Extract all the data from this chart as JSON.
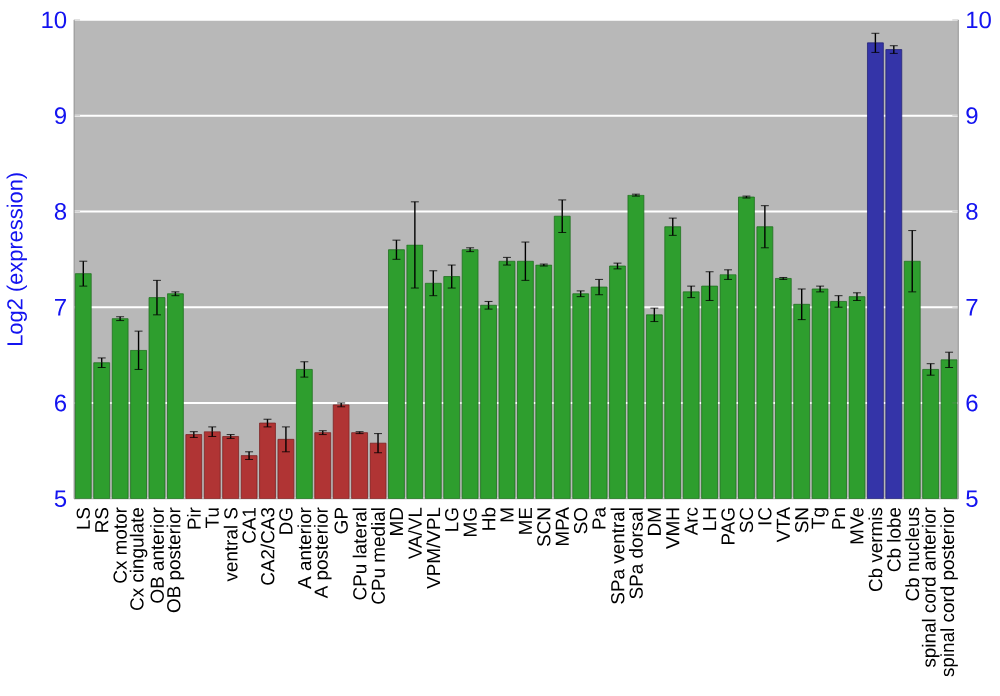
{
  "chart_data": {
    "type": "bar",
    "ylabel": "Log2 (expression)",
    "categories": [
      "LS",
      "RS",
      "Cx motor",
      "Cx cingulate",
      "OB anterior",
      "OB posterior",
      "Pir",
      "Tu",
      "ventral S",
      "CA1",
      "CA2/CA3",
      "DG",
      "A anterior",
      "A posterior",
      "GP",
      "CPu lateral",
      "CPu medial",
      "MD",
      "VA/VL",
      "VPM/VPL",
      "LG",
      "MG",
      "Hb",
      "M",
      "ME",
      "SCN",
      "MPA",
      "SO",
      "Pa",
      "SPa ventral",
      "SPa dorsal",
      "DM",
      "VMH",
      "Arc",
      "LH",
      "PAG",
      "SC",
      "IC",
      "VTA",
      "SN",
      "Tg",
      "Pn",
      "MVe",
      "Cb vermis",
      "Cb lobe",
      "Cb nucleus",
      "spinal cord anterior",
      "spinal cord posterior"
    ],
    "values": [
      7.35,
      6.42,
      6.88,
      6.55,
      7.1,
      7.14,
      5.67,
      5.7,
      5.65,
      5.45,
      5.79,
      5.62,
      6.35,
      5.69,
      5.98,
      5.69,
      5.58,
      7.6,
      7.65,
      7.25,
      7.32,
      7.6,
      7.02,
      7.48,
      7.48,
      7.44,
      7.95,
      7.14,
      7.21,
      7.43,
      8.17,
      6.92,
      7.84,
      7.16,
      7.22,
      7.34,
      8.15,
      7.84,
      7.3,
      7.03,
      7.19,
      7.06,
      7.11,
      9.76,
      9.69,
      7.48,
      6.35,
      6.45
    ],
    "errors": [
      0.13,
      0.05,
      0.02,
      0.2,
      0.18,
      0.02,
      0.03,
      0.05,
      0.02,
      0.04,
      0.04,
      0.13,
      0.08,
      0.02,
      0.02,
      0.01,
      0.1,
      0.1,
      0.45,
      0.13,
      0.12,
      0.02,
      0.04,
      0.04,
      0.2,
      0.01,
      0.17,
      0.03,
      0.08,
      0.03,
      0.01,
      0.07,
      0.09,
      0.06,
      0.15,
      0.05,
      0.01,
      0.22,
      0.01,
      0.16,
      0.03,
      0.06,
      0.04,
      0.1,
      0.04,
      0.32,
      0.06,
      0.08
    ],
    "colors": [
      "#2e9e2e",
      "#2e9e2e",
      "#2e9e2e",
      "#2e9e2e",
      "#2e9e2e",
      "#2e9e2e",
      "#b03434",
      "#b03434",
      "#b03434",
      "#b03434",
      "#b03434",
      "#b03434",
      "#2e9e2e",
      "#b03434",
      "#b03434",
      "#b03434",
      "#b03434",
      "#2e9e2e",
      "#2e9e2e",
      "#2e9e2e",
      "#2e9e2e",
      "#2e9e2e",
      "#2e9e2e",
      "#2e9e2e",
      "#2e9e2e",
      "#2e9e2e",
      "#2e9e2e",
      "#2e9e2e",
      "#2e9e2e",
      "#2e9e2e",
      "#2e9e2e",
      "#2e9e2e",
      "#2e9e2e",
      "#2e9e2e",
      "#2e9e2e",
      "#2e9e2e",
      "#2e9e2e",
      "#2e9e2e",
      "#2e9e2e",
      "#2e9e2e",
      "#2e9e2e",
      "#2e9e2e",
      "#2e9e2e",
      "#3434a8",
      "#3434a8",
      "#2e9e2e",
      "#2e9e2e",
      "#2e9e2e"
    ],
    "ylim": [
      5,
      10
    ],
    "yticks": [
      5,
      6,
      7,
      8,
      9,
      10
    ],
    "y2lim": [
      5,
      10
    ],
    "y2ticks": [
      5,
      6,
      7,
      8,
      9,
      10
    ],
    "grid": "y"
  }
}
